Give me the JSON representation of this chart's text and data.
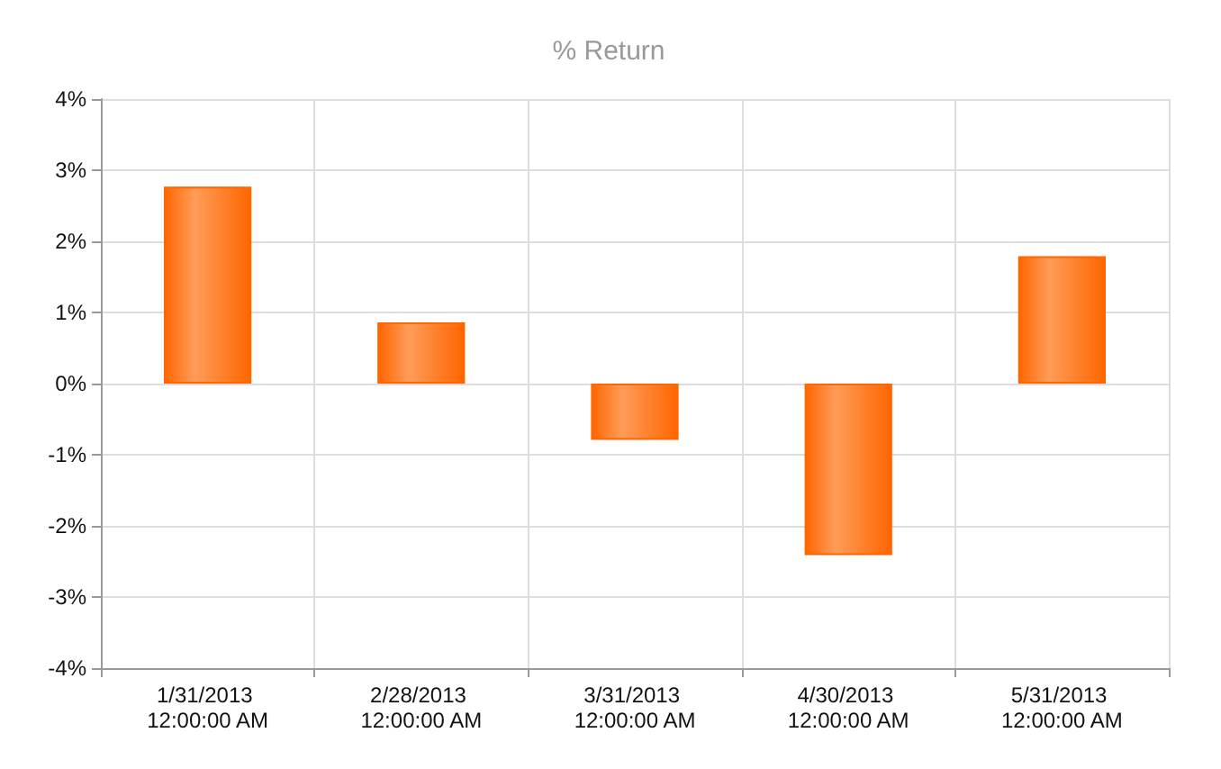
{
  "chart_data": {
    "type": "bar",
    "title": "% Return",
    "categories": [
      "1/31/2013 12:00:00 AM",
      "2/28/2013 12:00:00 AM",
      "3/31/2013 12:00:00 AM",
      "4/30/2013 12:00:00 AM",
      "5/31/2013 12:00:00 AM"
    ],
    "values": [
      2.77,
      0.86,
      -0.79,
      -2.41,
      1.79
    ],
    "color": "#ff6600",
    "ylim": [
      -4,
      4
    ],
    "yticks": [
      {
        "value": -4,
        "label": "-4%"
      },
      {
        "value": -3,
        "label": "-3%"
      },
      {
        "value": -2,
        "label": "-2%"
      },
      {
        "value": -1,
        "label": "-1%"
      },
      {
        "value": 0,
        "label": "0%"
      },
      {
        "value": 1,
        "label": "1%"
      },
      {
        "value": 2,
        "label": "2%"
      },
      {
        "value": 3,
        "label": "3%"
      },
      {
        "value": 4,
        "label": "4%"
      }
    ],
    "grid": true
  }
}
